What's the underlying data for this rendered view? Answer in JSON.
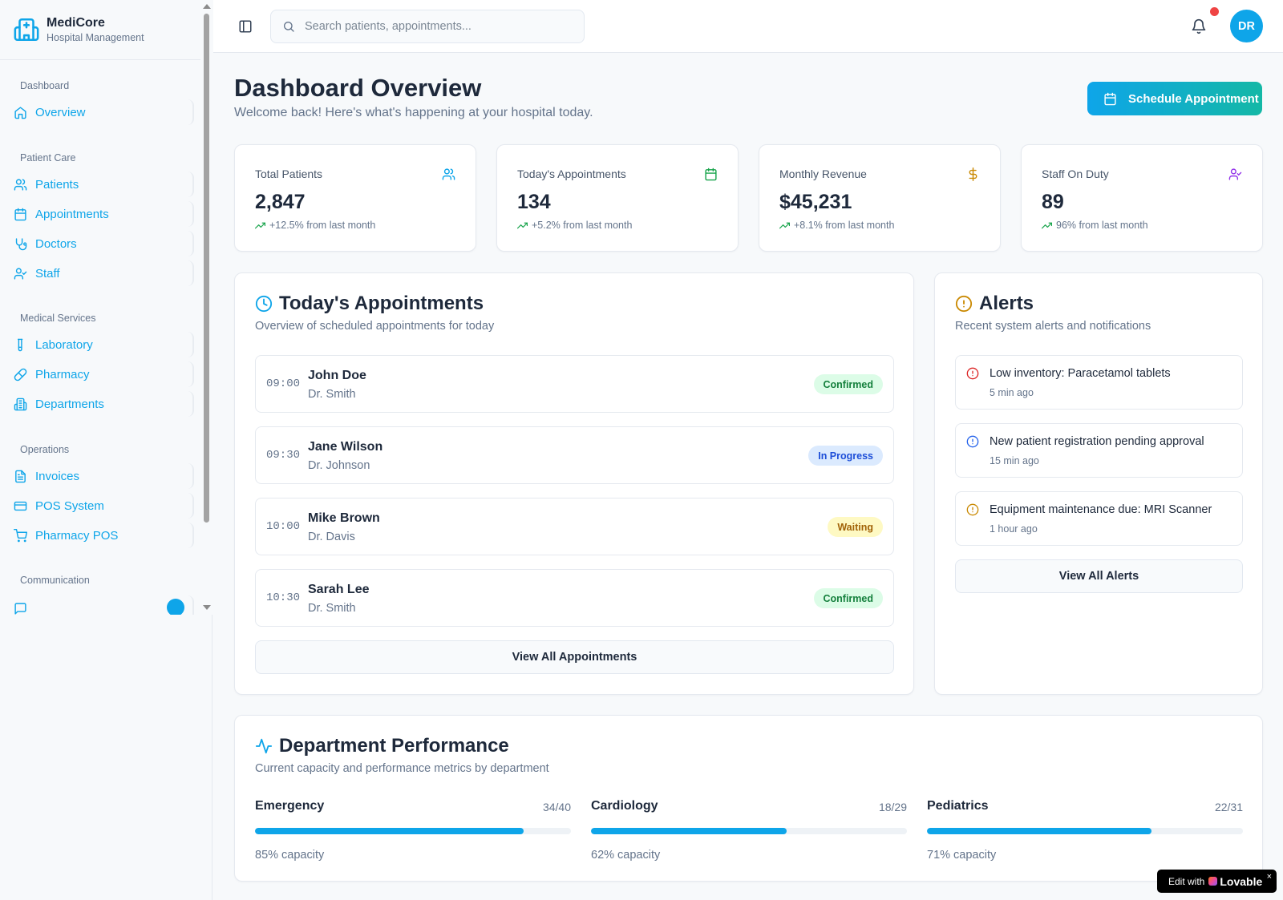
{
  "brand": {
    "name": "MediCore",
    "subtitle": "Hospital Management"
  },
  "sidebar": {
    "groups": [
      {
        "label": "Dashboard",
        "items": [
          {
            "label": "Overview",
            "icon": "home-icon"
          }
        ]
      },
      {
        "label": "Patient Care",
        "items": [
          {
            "label": "Patients",
            "icon": "users-icon"
          },
          {
            "label": "Appointments",
            "icon": "calendar-icon"
          },
          {
            "label": "Doctors",
            "icon": "stethoscope-icon"
          },
          {
            "label": "Staff",
            "icon": "user-check-icon"
          }
        ]
      },
      {
        "label": "Medical Services",
        "items": [
          {
            "label": "Laboratory",
            "icon": "test-tube-icon"
          },
          {
            "label": "Pharmacy",
            "icon": "pill-icon"
          },
          {
            "label": "Departments",
            "icon": "building-icon"
          }
        ]
      },
      {
        "label": "Operations",
        "items": [
          {
            "label": "Invoices",
            "icon": "file-text-icon"
          },
          {
            "label": "POS System",
            "icon": "credit-card-icon"
          },
          {
            "label": "Pharmacy POS",
            "icon": "shopping-cart-icon"
          }
        ]
      },
      {
        "label": "Communication",
        "items": []
      }
    ]
  },
  "topbar": {
    "search_placeholder": "Search patients, appointments...",
    "avatar_initials": "DR"
  },
  "header": {
    "title": "Dashboard Overview",
    "subtitle": "Welcome back! Here's what's happening at your hospital today.",
    "primary_action": "Schedule Appointment"
  },
  "stats": [
    {
      "label": "Total Patients",
      "value": "2,847",
      "change": "+12.5% from last month",
      "icon": "users-icon",
      "color": "#0ea5e9"
    },
    {
      "label": "Today's Appointments",
      "value": "134",
      "change": "+5.2% from last month",
      "icon": "calendar-icon",
      "color": "#16a34a"
    },
    {
      "label": "Monthly Revenue",
      "value": "$45,231",
      "change": "+8.1% from last month",
      "icon": "dollar-icon",
      "color": "#ca8a04"
    },
    {
      "label": "Staff On Duty",
      "value": "89",
      "change": "96% from last month",
      "icon": "user-check-icon",
      "color": "#9333ea"
    }
  ],
  "appointments": {
    "title": "Today's Appointments",
    "subtitle": "Overview of scheduled appointments for today",
    "items": [
      {
        "time": "09:00",
        "patient": "John Doe",
        "doctor": "Dr. Smith",
        "status": "Confirmed"
      },
      {
        "time": "09:30",
        "patient": "Jane Wilson",
        "doctor": "Dr. Johnson",
        "status": "In Progress"
      },
      {
        "time": "10:00",
        "patient": "Mike Brown",
        "doctor": "Dr. Davis",
        "status": "Waiting"
      },
      {
        "time": "10:30",
        "patient": "Sarah Lee",
        "doctor": "Dr. Smith",
        "status": "Confirmed"
      }
    ],
    "view_all": "View All Appointments"
  },
  "alerts": {
    "title": "Alerts",
    "subtitle": "Recent system alerts and notifications",
    "items": [
      {
        "message": "Low inventory: Paracetamol tablets",
        "time": "5 min ago",
        "color": "#dc2626"
      },
      {
        "message": "New patient registration pending approval",
        "time": "15 min ago",
        "color": "#2563eb"
      },
      {
        "message": "Equipment maintenance due: MRI Scanner",
        "time": "1 hour ago",
        "color": "#ca8a04"
      }
    ],
    "view_all": "View All Alerts"
  },
  "departments": {
    "title": "Department Performance",
    "subtitle": "Current capacity and performance metrics by department",
    "items": [
      {
        "name": "Emergency",
        "count": "34/40",
        "capacity_pct": 85,
        "capacity_label": "85% capacity"
      },
      {
        "name": "Cardiology",
        "count": "18/29",
        "capacity_pct": 62,
        "capacity_label": "62% capacity"
      },
      {
        "name": "Pediatrics",
        "count": "22/31",
        "capacity_pct": 71,
        "capacity_label": "71% capacity"
      }
    ]
  },
  "footer_badge": {
    "prefix": "Edit with",
    "brand": "Lovable",
    "close": "×"
  },
  "colors": {
    "accent": "#0ea5e9",
    "gradient_end": "#14b8a6",
    "notification": "#ef4444"
  }
}
